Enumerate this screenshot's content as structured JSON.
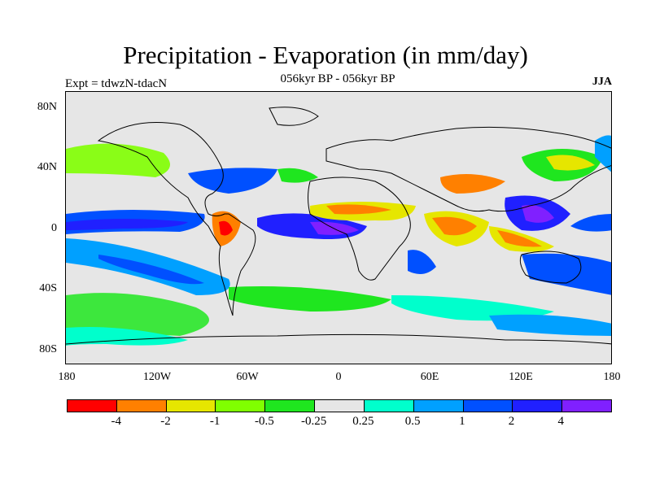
{
  "title": "Precipitation - Evaporation (in mm/day)",
  "subtitle": "056kyr BP - 056kyr BP",
  "left_label": "Expt = tdwzN-tdacN",
  "right_label": "JJA",
  "map": {
    "lat_ticks": [
      "80N",
      "40N",
      "0",
      "40S",
      "80S"
    ],
    "lon_ticks": [
      "180",
      "120W",
      "60W",
      "0",
      "60E",
      "120E",
      "180"
    ],
    "lon_range": [
      -180,
      180
    ],
    "lat_range": [
      -90,
      90
    ]
  },
  "colorbar": {
    "colors": [
      "#ff0000",
      "#ff8000",
      "#e6e600",
      "#80ff00",
      "#1fe61f",
      "#e6e6e6",
      "#00ffcc",
      "#00a0ff",
      "#0050ff",
      "#2020ff",
      "#8020ff"
    ],
    "labels": [
      "-4",
      "-2",
      "-1",
      "-0.5",
      "-0.25",
      "0.25",
      "0.5",
      "1",
      "2",
      "4"
    ]
  },
  "colors": {
    "background": "#ffffff",
    "neutral": "#e6e6e6"
  }
}
